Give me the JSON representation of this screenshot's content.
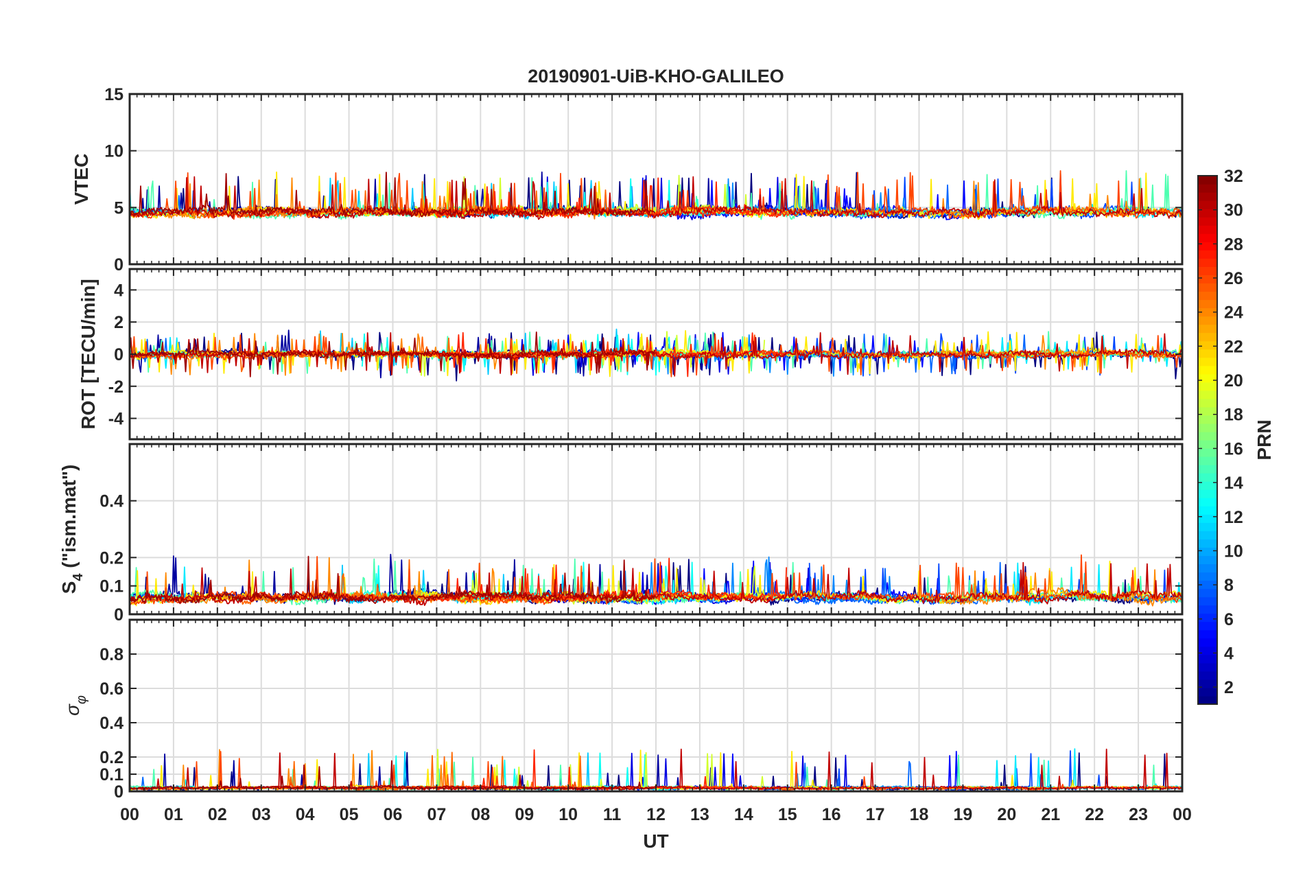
{
  "chart_data": {
    "type": "line",
    "title": "20190901-UiB-KHO-GALILEO",
    "xlabel": "UT",
    "x_tick_labels": [
      "00",
      "01",
      "02",
      "03",
      "04",
      "05",
      "06",
      "07",
      "08",
      "09",
      "10",
      "11",
      "12",
      "13",
      "14",
      "15",
      "16",
      "17",
      "18",
      "19",
      "20",
      "21",
      "22",
      "23",
      "00"
    ],
    "xlim_hours": [
      0,
      24
    ],
    "grid": true,
    "colormap": "jet",
    "colorbar": {
      "label": "PRN",
      "range": [
        1,
        32
      ],
      "tick_labels": [
        "2",
        "4",
        "6",
        "8",
        "10",
        "12",
        "14",
        "16",
        "18",
        "20",
        "22",
        "24",
        "26",
        "28",
        "30",
        "32"
      ],
      "placement": "right"
    },
    "panels": [
      {
        "id": "vtec",
        "ylabel": "VTEC",
        "ylim": [
          0,
          15
        ],
        "y_tick_values": [
          0,
          5,
          10,
          15
        ],
        "y_tick_labels": [
          "0",
          "5",
          "10",
          "15"
        ],
        "base": 4.6,
        "noise": 0.5,
        "spikes": 0.05,
        "clip": true
      },
      {
        "id": "rot",
        "ylabel": "ROT [TECU/min]",
        "ylim": [
          -5.3,
          5.3
        ],
        "y_tick_values": [
          -4,
          -2,
          0,
          2,
          4
        ],
        "y_tick_labels": [
          "-4",
          "-2",
          "0",
          "2",
          "4"
        ],
        "base": 0,
        "noise": 0.25,
        "spikes": 0.1,
        "clip": true
      },
      {
        "id": "s4",
        "ylabel_parts": [
          "S",
          "4",
          " (\"ism.mat\")"
        ],
        "ylim": [
          0,
          0.6
        ],
        "y_tick_values": [
          0,
          0.1,
          0.2,
          0.4
        ],
        "y_tick_labels": [
          "0",
          "0.1",
          "0.2",
          "0.4"
        ],
        "base": 0.06,
        "noise": 0.02,
        "spikes": 0.04,
        "clip": true
      },
      {
        "id": "sigma",
        "ylabel_parts": [
          "σ",
          "φ"
        ],
        "ylim": [
          0,
          1
        ],
        "y_tick_values": [
          0,
          0.1,
          0.2,
          0.4,
          0.6,
          0.8
        ],
        "y_tick_labels": [
          "0",
          "0.1",
          "0.2",
          "0.4",
          "0.6",
          "0.8"
        ],
        "base": 0.02,
        "noise": 0.01,
        "spikes": 0.02,
        "clip": true
      }
    ],
    "series": [
      {
        "prn": 1,
        "active_hours": [
          [
            0,
            24
          ]
        ]
      },
      {
        "prn": 2,
        "active_hours": [
          [
            0,
            13.5
          ]
        ]
      },
      {
        "prn": 4,
        "active_hours": [
          [
            8.9,
            16.5
          ]
        ]
      },
      {
        "prn": 5,
        "active_hours": [
          [
            11.5,
            19.2
          ]
        ]
      },
      {
        "prn": 7,
        "active_hours": [
          [
            15.5,
            24
          ]
        ]
      },
      {
        "prn": 8,
        "active_hours": [
          [
            0,
            1.5
          ],
          [
            14.8,
            21
          ]
        ]
      },
      {
        "prn": 9,
        "active_hours": [
          [
            10.6,
            17.8
          ]
        ]
      },
      {
        "prn": 11,
        "active_hours": [
          [
            4.3,
            12.5
          ]
        ]
      },
      {
        "prn": 12,
        "active_hours": [
          [
            0,
            1.5
          ],
          [
            19.5,
            24
          ]
        ]
      },
      {
        "prn": 13,
        "active_hours": [
          [
            5.3,
            13.2
          ]
        ]
      },
      {
        "prn": 15,
        "active_hours": [
          [
            0,
            24
          ]
        ]
      },
      {
        "prn": 19,
        "active_hours": [
          [
            6.5,
            14.5
          ]
        ]
      },
      {
        "prn": 21,
        "active_hours": [
          [
            0,
            24
          ]
        ]
      },
      {
        "prn": 24,
        "active_hours": [
          [
            0.8,
            8.5
          ],
          [
            18.5,
            24
          ]
        ]
      },
      {
        "prn": 25,
        "active_hours": [
          [
            2.5,
            11
          ]
        ]
      },
      {
        "prn": 26,
        "active_hours": [
          [
            0,
            24
          ]
        ]
      },
      {
        "prn": 27,
        "active_hours": [
          [
            7,
            15
          ]
        ]
      },
      {
        "prn": 30,
        "active_hours": [
          [
            0,
            24
          ]
        ]
      },
      {
        "prn": 31,
        "active_hours": [
          [
            0,
            12
          ]
        ]
      }
    ]
  }
}
